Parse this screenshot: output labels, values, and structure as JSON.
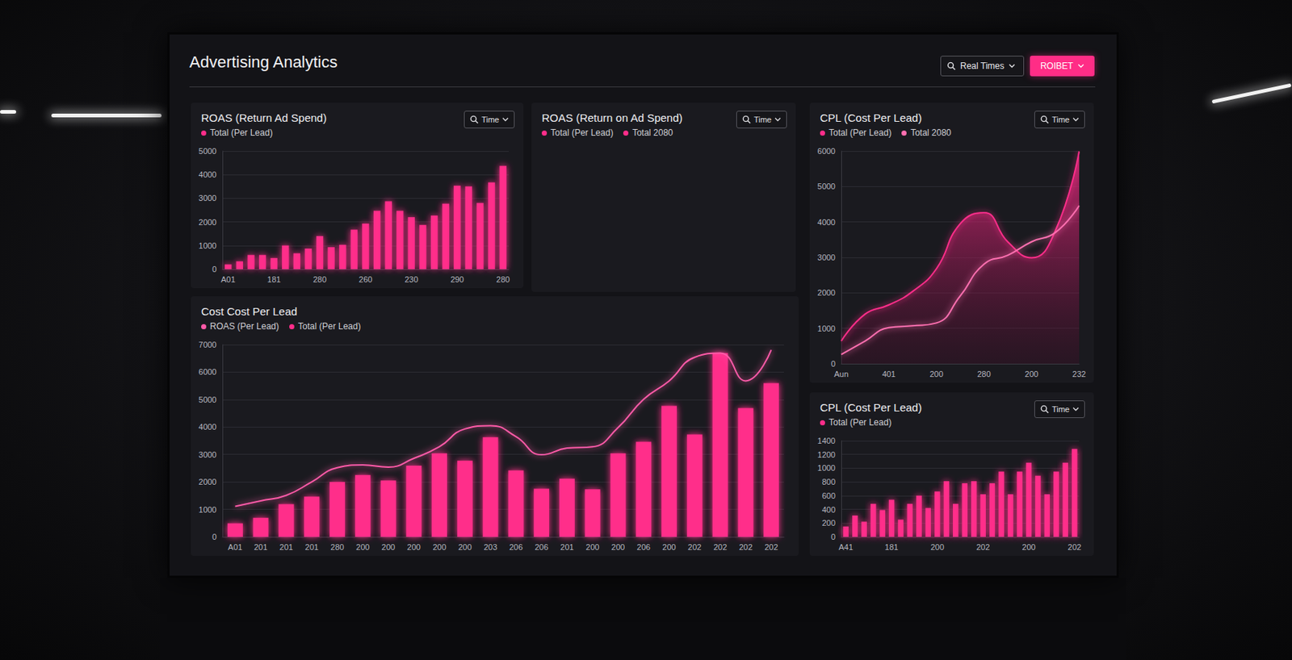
{
  "header": {
    "title": "Advertising Analytics",
    "search": "Real Times",
    "action": "ROIBET"
  },
  "chart_data": [
    {
      "type": "bar",
      "title": "ROAS (Return Ad Spend)",
      "button": "Time",
      "categories": [
        "A01",
        null,
        null,
        null,
        "181",
        null,
        null,
        null,
        "280",
        null,
        null,
        null,
        "260",
        null,
        null,
        null,
        "230",
        null,
        null,
        null,
        "290",
        null,
        null,
        null,
        "280"
      ],
      "series": [
        {
          "name": "Total (Per Lead)",
          "color": "#ff2d8a",
          "values": [
            200,
            330,
            600,
            600,
            470,
            1000,
            670,
            870,
            1400,
            930,
            1030,
            1670,
            1930,
            2470,
            2870,
            2470,
            2200,
            1870,
            2270,
            2770,
            3530,
            3500,
            2800,
            3670,
            4370
          ]
        }
      ],
      "ylim": [
        0,
        5000
      ],
      "yticks": [
        0,
        1000,
        2000,
        3000,
        4000,
        5000
      ],
      "grid": true
    },
    {
      "type": "bar",
      "title": "ROAS (Return on Ad Spend)",
      "button": "Time",
      "categories": [],
      "series": [
        {
          "name": "Total (Per Lead)",
          "color": "#ff2d8a",
          "values": []
        },
        {
          "name": "Total 2080",
          "color": "#ff2d8a",
          "values": []
        }
      ]
    },
    {
      "type": "line",
      "title": "CPL (Cost Per Lead)",
      "button": "Time",
      "categories": [
        "Aun",
        null,
        "401",
        null,
        "200",
        null,
        "280",
        null,
        "200",
        null,
        "232"
      ],
      "series": [
        {
          "name": "Total (Per Lead)",
          "type": "area",
          "color": "#ff2d8a",
          "values": [
            640,
            1400,
            1660,
            2040,
            2680,
            3950,
            4260,
            3440,
            2990,
            3750,
            5990
          ]
        },
        {
          "name": "Total 2080",
          "type": "line",
          "color": "#ff6fb0",
          "values": [
            260,
            640,
            1020,
            1070,
            1150,
            1910,
            2810,
            3060,
            3440,
            3700,
            4460
          ]
        }
      ],
      "ylim": [
        0,
        6000
      ],
      "yticks": [
        0,
        1000,
        2000,
        3000,
        4000,
        5000,
        6000
      ],
      "grid": true
    },
    {
      "type": "bar",
      "title": "Cost Cost Per Lead",
      "categories": [
        "A01",
        "201",
        "201",
        "201",
        "280",
        "200",
        "200",
        "200",
        "200",
        "200",
        "203",
        "206",
        "206",
        "201",
        "200",
        "200",
        "206",
        "200",
        "202",
        "202",
        "202",
        "202"
      ],
      "series": [
        {
          "name": "ROAS (Per Lead)",
          "type": "line",
          "color": "#ff5aa8",
          "values": [
            1110,
            1310,
            1510,
            2000,
            2520,
            2620,
            2540,
            2860,
            3280,
            3930,
            4050,
            3650,
            2990,
            3230,
            3280,
            3980,
            5010,
            5680,
            6540,
            6690,
            5680,
            6810
          ]
        },
        {
          "name": "Total (Per Lead)",
          "type": "bar",
          "color": "#ff2d8a",
          "values": [
            490,
            690,
            1190,
            1460,
            2000,
            2250,
            2050,
            2590,
            3040,
            2770,
            3630,
            2420,
            1750,
            2120,
            1730,
            3040,
            3460,
            4770,
            3730,
            6690,
            4690,
            5600
          ]
        }
      ],
      "ylim": [
        0,
        7000
      ],
      "yticks": [
        0,
        1000,
        2000,
        3000,
        4000,
        5000,
        6000,
        7000
      ],
      "grid": true
    },
    {
      "type": "bar",
      "title": "CPL (Cost Per Lead)",
      "button": "Time",
      "categories": [
        "A41",
        null,
        null,
        null,
        null,
        "181",
        null,
        null,
        null,
        null,
        "200",
        null,
        null,
        null,
        null,
        "202",
        null,
        null,
        null,
        null,
        "200",
        null,
        null,
        null,
        null,
        "202"
      ],
      "series": [
        {
          "name": "Total (Per Lead)",
          "color": "#ff2d8a",
          "values": [
            150,
            310,
            220,
            480,
            390,
            540,
            250,
            480,
            600,
            420,
            660,
            810,
            480,
            780,
            810,
            620,
            780,
            950,
            620,
            950,
            1080,
            890,
            620,
            950,
            1080,
            1280
          ]
        }
      ],
      "ylim": [
        0,
        1400
      ],
      "yticks": [
        0,
        200,
        400,
        600,
        800,
        1000,
        1200,
        1400
      ],
      "grid": true
    }
  ]
}
